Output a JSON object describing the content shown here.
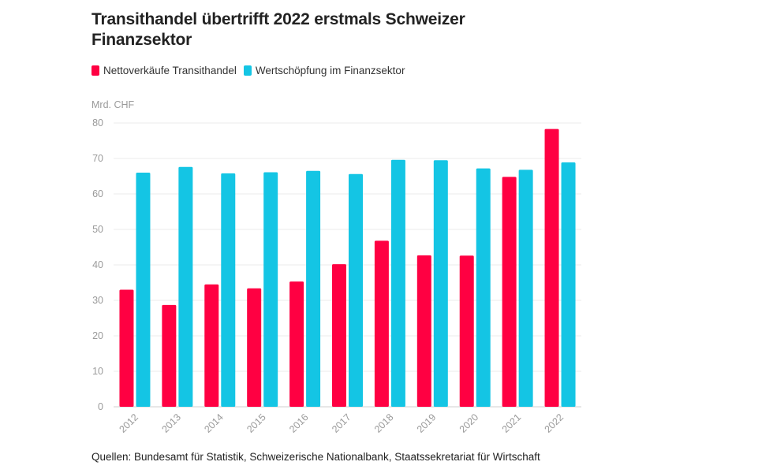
{
  "chart_data": {
    "type": "bar",
    "title": "Transithandel übertrifft 2022 erstmals Schweizer Finanzsektor",
    "unit_label": "Mrd. CHF",
    "categories": [
      "2012",
      "2013",
      "2014",
      "2015",
      "2016",
      "2017",
      "2018",
      "2019",
      "2020",
      "2021",
      "2022"
    ],
    "series": [
      {
        "name": "Nettoverkäufe Transithandel",
        "color": "#ff0042",
        "values": [
          33.0,
          28.7,
          34.5,
          33.4,
          35.3,
          40.2,
          46.8,
          42.7,
          42.6,
          64.8,
          78.3
        ]
      },
      {
        "name": "Wertschöpfung im Finanzsektor",
        "color": "#14c5e4",
        "values": [
          66.0,
          67.6,
          65.8,
          66.1,
          66.5,
          65.6,
          69.6,
          69.5,
          67.2,
          66.8,
          68.9
        ]
      }
    ],
    "ylim": [
      0,
      80
    ],
    "yticks": [
      0,
      10,
      20,
      30,
      40,
      50,
      60,
      70,
      80
    ],
    "grid": true,
    "legend_position": "top-left",
    "source": "Quellen: Bundesamt für Statistik, Schweizerische Nationalbank, Staatssekretariat für Wirtschaft"
  }
}
